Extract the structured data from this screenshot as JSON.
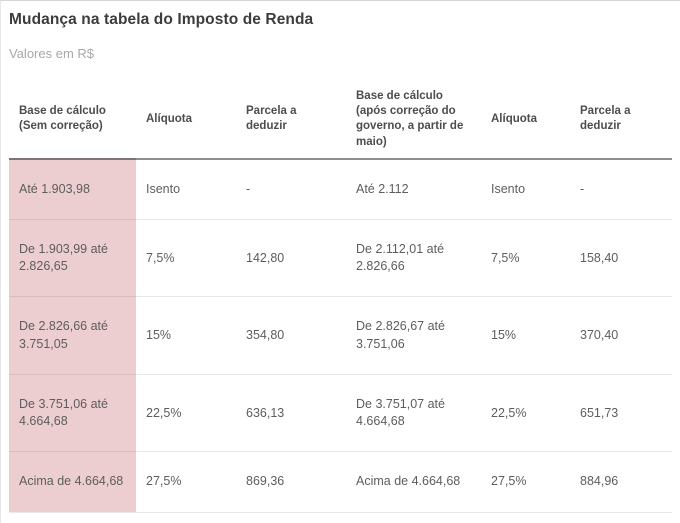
{
  "page": {
    "title": "Mudança na tabela do Imposto de Renda",
    "subtitle": "Valores em R$"
  },
  "table": {
    "columns": [
      {
        "label": "Base de cálculo (Sem correção)",
        "highlight": true
      },
      {
        "label": "Alíquota",
        "highlight": false
      },
      {
        "label": "Parcela a deduzir",
        "highlight": false
      },
      {
        "label": "Base de cálculo (após correção do governo, a partir de maio)",
        "highlight": false
      },
      {
        "label": "Alíquota",
        "highlight": false
      },
      {
        "label": "Parcela a deduzir",
        "highlight": false
      }
    ],
    "rows": [
      [
        "Até 1.903,98",
        "Isento",
        "-",
        "Até 2.112",
        "Isento",
        "-"
      ],
      [
        "De 1.903,99 até 2.826,65",
        "7,5%",
        "142,80",
        "De 2.112,01 até 2.826,66",
        "7,5%",
        "158,40"
      ],
      [
        "De 2.826,66 até 3.751,05",
        "15%",
        "354,80",
        "De 2.826,67 até 3.751,06",
        "15%",
        "370,40"
      ],
      [
        "De 3.751,06 até 4.664,68",
        "22,5%",
        "636,13",
        "De 3.751,07 até 4.664,68",
        "22,5%",
        "651,73"
      ],
      [
        "Acima de 4.664,68",
        "27,5%",
        "869,36",
        "Acima de 4.664,68",
        "27,5%",
        "884,96"
      ]
    ]
  },
  "colors": {
    "highlight_pink": "#edced0",
    "header_rule": "#8e8e8e",
    "header_rule_highlight": "#7c7476",
    "row_divider": "#e9e9e9",
    "title_text": "#3c3c3c",
    "subtitle_text": "#a8a8a8",
    "body_text": "#5d5d5d",
    "header_text": "#4d4d4d"
  }
}
